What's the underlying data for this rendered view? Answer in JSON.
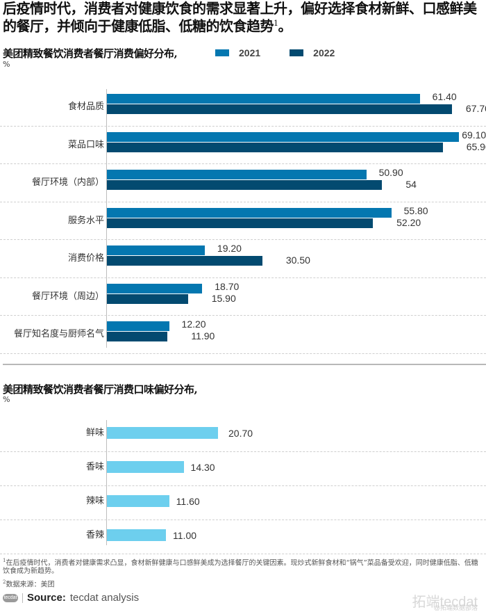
{
  "headline": {
    "text": "后疫情时代，消费者对健康饮食的需求显著上升，偏好选择食材新鲜、口感鲜美的餐厅，并倾向于健康低脂、低糖的饮食趋势",
    "footnote_marker": "1",
    "end": "。"
  },
  "chart1": {
    "title": "美团精致餐饮消费者餐厅消费偏好分布,",
    "unit": "%",
    "legend": [
      {
        "label": "2021",
        "color": "#0477b0"
      },
      {
        "label": "2022",
        "color": "#034a70"
      }
    ]
  },
  "chart2": {
    "title": "美团精致餐饮消费者餐厅消费口味偏好分布,",
    "unit": "%",
    "color": "#6dcfee"
  },
  "chart_data": [
    {
      "type": "bar",
      "orientation": "horizontal",
      "title": "美团精致餐饮消费者餐厅消费偏好分布,",
      "ylabel": "%",
      "categories": [
        "食材品质",
        "菜品口味",
        "餐厅环境（内部）",
        "服务水平",
        "消费价格",
        "餐厅环境（周边）",
        "餐厅知名度与厨师名气"
      ],
      "series": [
        {
          "name": "2021",
          "color": "#0477b0",
          "values": [
            61.4,
            69.1,
            50.9,
            55.8,
            19.2,
            18.7,
            12.2
          ],
          "labels": [
            "61.40",
            "69.10",
            "50.90",
            "55.80",
            "19.20",
            "18.70",
            "12.20"
          ]
        },
        {
          "name": "2022",
          "color": "#034a70",
          "values": [
            67.7,
            65.9,
            54,
            52.2,
            30.5,
            15.9,
            11.9
          ],
          "labels": [
            "67.70",
            "65.90",
            "54",
            "52.20",
            "30.50",
            "15.90",
            "11.90"
          ]
        }
      ],
      "legend_position": "top",
      "grid": "dashed row separators"
    },
    {
      "type": "bar",
      "orientation": "horizontal",
      "title": "美团精致餐饮消费者餐厅消费口味偏好分布,",
      "ylabel": "%",
      "categories": [
        "鲜味",
        "香味",
        "辣味",
        "香辣"
      ],
      "values": [
        20.7,
        14.3,
        11.6,
        11.0
      ],
      "labels": [
        "20.70",
        "14.30",
        "11.60",
        "11.00"
      ],
      "color": "#6dcfee"
    }
  ],
  "footnotes": {
    "note1_marker": "1",
    "note1": "在后疫情时代，消费者对健康需求凸显，食材新鲜健康与口感鲜美成为选择餐厅的关键因素。现炒式新鲜食材和“锅气”菜品备受欢迎，同时健康低脂、低糖饮食成为新趋势。",
    "note2_marker": "2",
    "note2": "数据来源：美团"
  },
  "source": {
    "logo": "tecdat",
    "label": "Source:",
    "text": "tecdat analysis"
  },
  "watermark": {
    "main": "拓端tecdat",
    "sub": "@拓端数据部落"
  }
}
